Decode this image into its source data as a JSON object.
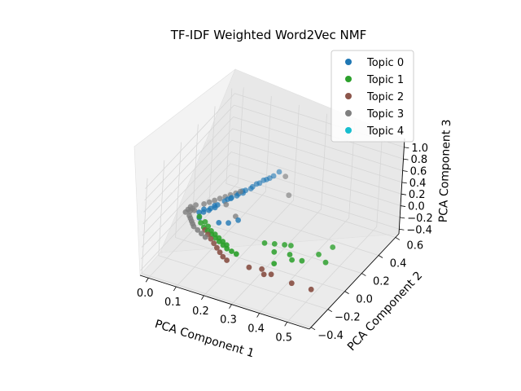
{
  "chart_data": {
    "type": "scatter",
    "projection": "3d",
    "title": "TF-IDF Weighted Word2Vec NMF",
    "xlabel": "PCA Component 1",
    "ylabel": "PCA Component 2",
    "zlabel": "PCA Component 3",
    "x_ticks": [
      "0.0",
      "0.1",
      "0.2",
      "0.3",
      "0.4",
      "0.5"
    ],
    "y_ticks": [
      "−0.4",
      "−0.2",
      "0.0",
      "0.2",
      "0.4",
      "0.6"
    ],
    "z_ticks": [
      "−0.4",
      "−0.2",
      "0.0",
      "0.2",
      "0.4",
      "0.6",
      "0.8",
      "1.0"
    ],
    "xlim": [
      -0.03,
      0.58
    ],
    "ylim": [
      -0.42,
      0.64
    ],
    "zlim": [
      -0.48,
      1.15
    ],
    "grid": true,
    "legend_position": "top-right",
    "series": [
      {
        "name": "Topic 0",
        "color": "#1f77b4",
        "points": [
          [
            0.05,
            0.05,
            0.0
          ],
          [
            0.06,
            0.1,
            0.0
          ],
          [
            0.07,
            0.15,
            0.0
          ],
          [
            0.08,
            0.2,
            0.0
          ],
          [
            0.09,
            0.25,
            0.0
          ],
          [
            0.1,
            0.3,
            0.0
          ],
          [
            0.11,
            0.35,
            0.0
          ],
          [
            0.12,
            0.4,
            0.0
          ],
          [
            0.13,
            0.45,
            0.0
          ],
          [
            0.14,
            0.5,
            0.0
          ],
          [
            0.15,
            0.55,
            0.0
          ],
          [
            0.155,
            0.6,
            0.0
          ],
          [
            0.045,
            0.07,
            0.01
          ],
          [
            0.065,
            0.13,
            0.01
          ],
          [
            0.085,
            0.22,
            0.01
          ],
          [
            0.105,
            0.33,
            0.01
          ],
          [
            0.125,
            0.43,
            0.01
          ],
          [
            0.135,
            0.48,
            0.01
          ],
          [
            0.04,
            0.03,
            0.01
          ],
          [
            0.06,
            0.08,
            0.0
          ],
          [
            0.1,
            0.28,
            0.0
          ],
          [
            0.11,
            0.32,
            0.0
          ],
          [
            0.12,
            0.38,
            0.0
          ],
          [
            0.145,
            0.52,
            0.0
          ],
          [
            0.09,
            0.24,
            0.0
          ],
          [
            0.07,
            0.12,
            0.0
          ],
          [
            0.12,
            0.0,
            0.0
          ],
          [
            0.14,
            0.05,
            -0.05
          ],
          [
            0.16,
            0.1,
            -0.05
          ],
          [
            0.05,
            0.0,
            -0.02
          ]
        ]
      },
      {
        "name": "Topic 1",
        "color": "#2ca02c",
        "points": [
          [
            0.05,
            0.0,
            0.0
          ],
          [
            0.07,
            -0.05,
            0.0
          ],
          [
            0.09,
            -0.08,
            0.0
          ],
          [
            0.11,
            -0.1,
            0.0
          ],
          [
            0.13,
            -0.12,
            0.0
          ],
          [
            0.15,
            -0.14,
            0.0
          ],
          [
            0.17,
            -0.16,
            0.0
          ],
          [
            0.19,
            -0.18,
            0.0
          ],
          [
            0.21,
            -0.2,
            0.0
          ],
          [
            0.23,
            -0.21,
            0.0
          ],
          [
            0.25,
            -0.22,
            0.0
          ],
          [
            0.08,
            -0.03,
            0.0
          ],
          [
            0.1,
            -0.06,
            0.0
          ],
          [
            0.12,
            -0.09,
            0.0
          ],
          [
            0.14,
            -0.11,
            0.0
          ],
          [
            0.16,
            -0.13,
            0.0
          ],
          [
            0.18,
            -0.15,
            0.0
          ],
          [
            0.2,
            -0.17,
            0.0
          ],
          [
            0.3,
            -0.05,
            0.0
          ],
          [
            0.33,
            -0.03,
            0.0
          ],
          [
            0.36,
            -0.01,
            0.0
          ],
          [
            0.38,
            0.0,
            0.0
          ],
          [
            0.35,
            -0.1,
            0.0
          ],
          [
            0.4,
            -0.08,
            0.0
          ],
          [
            0.42,
            -0.12,
            0.0
          ],
          [
            0.45,
            -0.1,
            0.0
          ],
          [
            0.48,
            0.0,
            0.0
          ],
          [
            0.38,
            -0.2,
            0.0
          ],
          [
            0.5,
            0.1,
            0.0
          ],
          [
            0.52,
            -0.05,
            0.0
          ]
        ]
      },
      {
        "name": "Topic 2",
        "color": "#8c564b",
        "points": [
          [
            0.1,
            -0.1,
            0.0
          ],
          [
            0.12,
            -0.13,
            0.0
          ],
          [
            0.14,
            -0.16,
            0.0
          ],
          [
            0.16,
            -0.19,
            0.0
          ],
          [
            0.18,
            -0.22,
            0.0
          ],
          [
            0.2,
            -0.25,
            0.0
          ],
          [
            0.22,
            -0.28,
            0.0
          ],
          [
            0.24,
            -0.3,
            0.0
          ],
          [
            0.32,
            -0.3,
            0.0
          ],
          [
            0.36,
            -0.28,
            0.0
          ],
          [
            0.38,
            -0.32,
            0.0
          ],
          [
            0.4,
            -0.3,
            0.0
          ],
          [
            0.48,
            -0.32,
            0.0
          ],
          [
            0.55,
            -0.32,
            0.0
          ]
        ]
      },
      {
        "name": "Topic 3",
        "color": "#7f7f7f",
        "points": [
          [
            0.0,
            0.0,
            0.0
          ],
          [
            0.01,
            0.02,
            0.0
          ],
          [
            0.02,
            0.04,
            0.0
          ],
          [
            0.0,
            0.06,
            0.0
          ],
          [
            0.01,
            0.09,
            0.0
          ],
          [
            0.03,
            0.12,
            0.0
          ],
          [
            0.04,
            0.15,
            0.0
          ],
          [
            0.05,
            0.18,
            0.0
          ],
          [
            0.06,
            0.21,
            0.0
          ],
          [
            0.07,
            0.24,
            0.0
          ],
          [
            0.08,
            0.27,
            0.0
          ],
          [
            0.09,
            0.3,
            0.0
          ],
          [
            0.02,
            -0.02,
            0.0
          ],
          [
            0.03,
            -0.04,
            0.0
          ],
          [
            0.04,
            -0.06,
            0.0
          ],
          [
            0.05,
            -0.08,
            0.0
          ],
          [
            0.06,
            -0.1,
            0.0
          ],
          [
            0.08,
            -0.12,
            0.0
          ],
          [
            0.1,
            -0.14,
            0.0
          ],
          [
            0.12,
            -0.16,
            0.0
          ],
          [
            0.0,
            0.03,
            0.0
          ],
          [
            0.01,
            0.05,
            0.0
          ],
          [
            0.1,
            0.15,
            0.05
          ],
          [
            0.12,
            0.25,
            0.15
          ],
          [
            0.22,
            0.45,
            0.25
          ],
          [
            0.25,
            0.4,
            0.05
          ],
          [
            0.15,
            0.1,
            0.0
          ]
        ]
      },
      {
        "name": "Topic 4",
        "color": "#17becf",
        "points": []
      }
    ]
  }
}
